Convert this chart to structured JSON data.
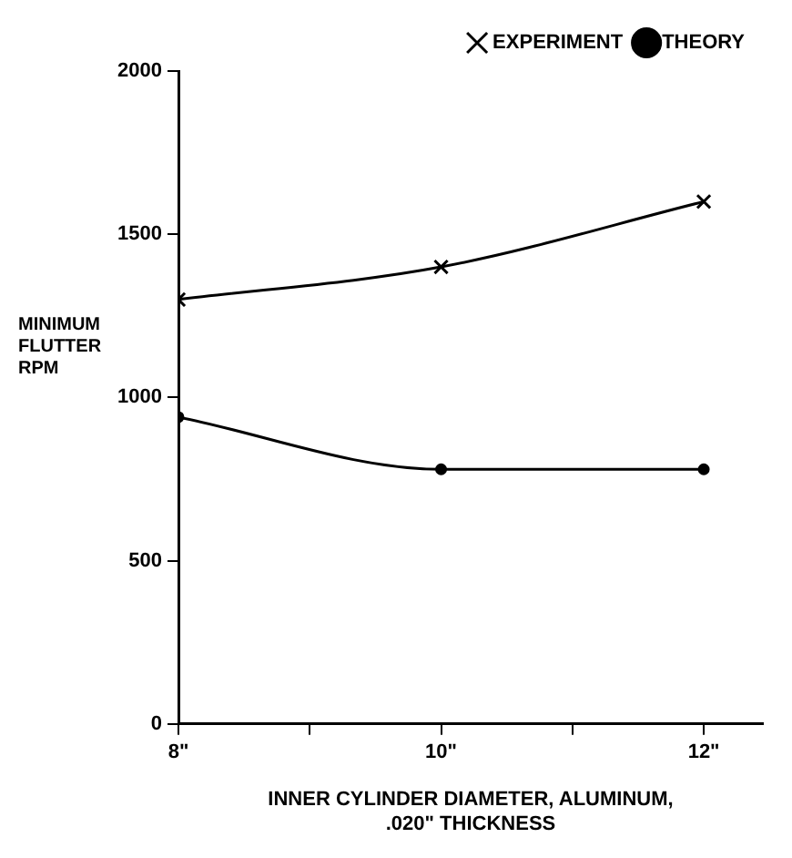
{
  "chart_data": {
    "type": "line",
    "xlabel": "INNER CYLINDER DIAMETER, ALUMINUM, .020\" THICKNESS",
    "ylabel": "MINIMUM FLUTTER RPM",
    "x": [
      8,
      10,
      12
    ],
    "series": [
      {
        "name": "EXPERIMENT",
        "color": "#000000",
        "marker": "cross",
        "values": [
          1300,
          1400,
          1600
        ]
      },
      {
        "name": "THEORY",
        "color": "#000000",
        "marker": "circle",
        "values": [
          940,
          780,
          780
        ]
      }
    ],
    "xlim": [
      8,
      12.45
    ],
    "xticks": [
      {
        "value": 8,
        "label": "8\""
      },
      {
        "value": 9,
        "label": null
      },
      {
        "value": 10,
        "label": "10\""
      },
      {
        "value": 11,
        "label": null
      },
      {
        "value": 12,
        "label": "12\""
      }
    ],
    "ylim": [
      0,
      2000
    ],
    "yticks": [
      0,
      500,
      1000,
      1500,
      2000
    ],
    "grid": false,
    "legend": "top right"
  }
}
